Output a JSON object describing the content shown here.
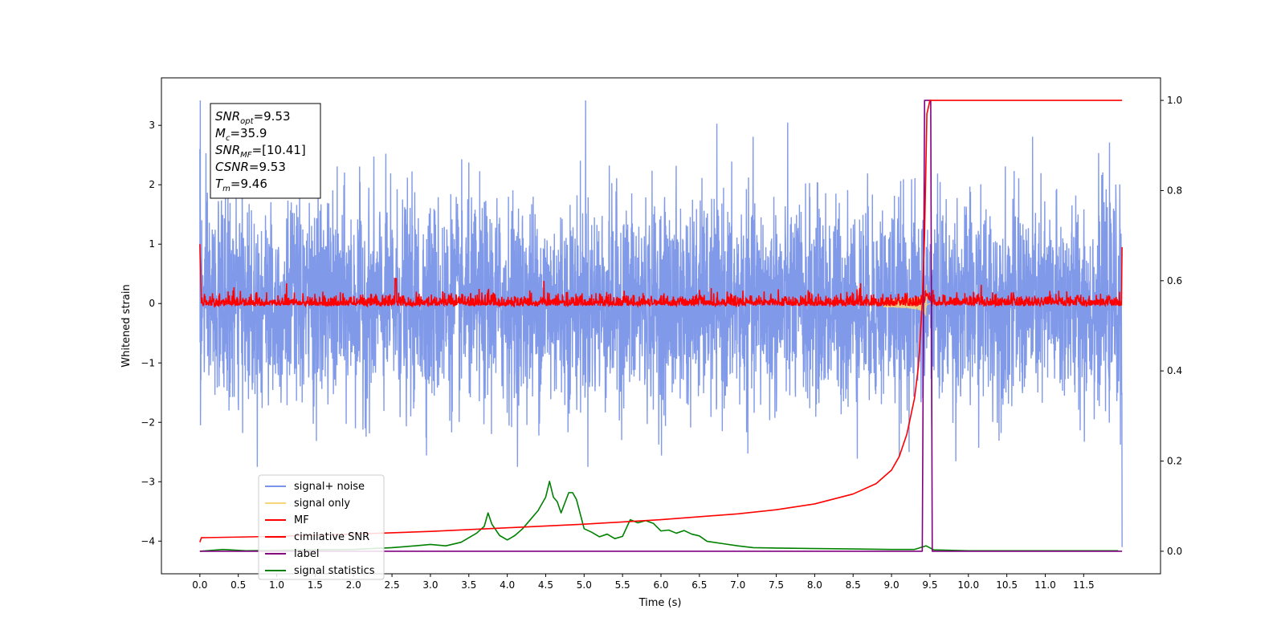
{
  "chart_data": {
    "type": "line",
    "title": "",
    "xlabel": "Time (s)",
    "ylabel": "Whitened strain",
    "xlim": [
      -0.5,
      12.5
    ],
    "ylim": [
      -4.55,
      3.8
    ],
    "y2lim": [
      -0.05,
      1.05
    ],
    "grid": false,
    "legend_position": "lower-left",
    "x_ticks": [
      0.0,
      0.5,
      1.0,
      1.5,
      2.0,
      2.5,
      3.0,
      3.5,
      4.0,
      4.5,
      5.0,
      5.5,
      6.0,
      6.5,
      7.0,
      7.5,
      8.0,
      8.5,
      9.0,
      9.5,
      10.0,
      10.5,
      11.0,
      11.5
    ],
    "x_tick_labels": [
      "0.0",
      "0.5",
      "1.0",
      "1.5",
      "2.0",
      "2.5",
      "3.0",
      "3.5",
      "4.0",
      "4.5",
      "5.0",
      "5.5",
      "6.0",
      "6.5",
      "7.0",
      "7.5",
      "8.0",
      "8.5",
      "9.0",
      "9.5",
      "10.0",
      "10.5",
      "11.0",
      "11.5"
    ],
    "y_ticks": [
      3,
      2,
      1,
      0,
      -1,
      -2,
      -3,
      -4
    ],
    "y_tick_labels": [
      "3",
      "2",
      "1",
      "0",
      "−1",
      "−2",
      "−3",
      "−4"
    ],
    "y2_ticks": [
      1.0,
      0.8,
      0.6,
      0.4,
      0.2,
      0.0
    ],
    "y2_tick_labels": [
      "1.0",
      "0.8",
      "0.6",
      "0.4",
      "0.2",
      "0.0"
    ],
    "annotation": [
      {
        "base": "SNR",
        "sub": "opt",
        "value": "=9.53"
      },
      {
        "base": "M",
        "sub": "c",
        "value": "=35.9"
      },
      {
        "base": "SNR",
        "sub": "MF",
        "value": "=[10.41]"
      },
      {
        "base": "CSNR",
        "sub": "",
        "value": "=9.53"
      },
      {
        "base": "T",
        "sub": "m",
        "value": "=9.46"
      }
    ],
    "series": [
      {
        "name": "signal+ noise",
        "color": "#7994e8",
        "axis": "left",
        "x_range": [
          0,
          12
        ],
        "amplitude_sigma": 0.85,
        "min": -2.75,
        "max": 3.42,
        "end_spike": -4.1
      },
      {
        "name": "signal only",
        "color": "#f7d67a",
        "axis": "left",
        "merger_time": 9.46,
        "peak_amplitude": 0.35
      },
      {
        "name": "MF",
        "color": "#ff0000",
        "axis": "left",
        "x_range": [
          0,
          12
        ],
        "baseline_noise": 0.08,
        "start_value": 1.0,
        "peak": {
          "x": 2.55,
          "y": 0.42
        },
        "end_value": 0.95
      },
      {
        "name": "cimilative SNR",
        "color": "#ff0000",
        "axis": "right",
        "x": [
          0,
          0.02,
          1,
          2,
          3,
          4,
          5,
          6,
          7,
          7.5,
          8,
          8.5,
          8.8,
          9.0,
          9.1,
          9.2,
          9.3,
          9.35,
          9.4,
          9.43,
          9.46,
          9.5,
          10,
          11,
          12
        ],
        "y": [
          0.02,
          0.03,
          0.033,
          0.038,
          0.044,
          0.052,
          0.06,
          0.07,
          0.083,
          0.092,
          0.105,
          0.127,
          0.15,
          0.18,
          0.21,
          0.26,
          0.34,
          0.41,
          0.55,
          0.7,
          0.97,
          1.0,
          1.0,
          1.0,
          1.0
        ]
      },
      {
        "name": "label",
        "color": "#800080",
        "axis": "right",
        "x": [
          0,
          9.4,
          9.43,
          9.51,
          9.53,
          12
        ],
        "y": [
          0.0,
          0.0,
          1.0,
          1.0,
          0.0,
          0.0
        ]
      },
      {
        "name": "signal statistics",
        "color": "#008000",
        "axis": "right",
        "x": [
          0,
          0.3,
          0.6,
          1,
          1.5,
          2,
          2.5,
          2.8,
          3.0,
          3.2,
          3.4,
          3.6,
          3.7,
          3.75,
          3.8,
          3.9,
          4.0,
          4.1,
          4.2,
          4.3,
          4.4,
          4.5,
          4.55,
          4.6,
          4.65,
          4.7,
          4.8,
          4.85,
          4.9,
          5.0,
          5.1,
          5.2,
          5.3,
          5.4,
          5.5,
          5.6,
          5.7,
          5.8,
          5.9,
          6.0,
          6.1,
          6.2,
          6.3,
          6.4,
          6.5,
          6.6,
          6.8,
          7.0,
          7.2,
          7.5,
          8.0,
          8.5,
          9.0,
          9.3,
          9.45,
          9.55,
          10,
          11,
          11.95
        ],
        "y": [
          0.0,
          0.004,
          0.001,
          0.002,
          0.003,
          0.004,
          0.008,
          0.012,
          0.015,
          0.012,
          0.02,
          0.04,
          0.055,
          0.085,
          0.06,
          0.035,
          0.025,
          0.035,
          0.05,
          0.07,
          0.09,
          0.12,
          0.155,
          0.12,
          0.11,
          0.085,
          0.13,
          0.13,
          0.115,
          0.05,
          0.042,
          0.032,
          0.038,
          0.028,
          0.033,
          0.07,
          0.063,
          0.068,
          0.062,
          0.045,
          0.047,
          0.04,
          0.046,
          0.038,
          0.034,
          0.022,
          0.017,
          0.012,
          0.008,
          0.007,
          0.006,
          0.005,
          0.004,
          0.004,
          0.012,
          0.003,
          0.001,
          0.001,
          0.001
        ]
      }
    ]
  }
}
